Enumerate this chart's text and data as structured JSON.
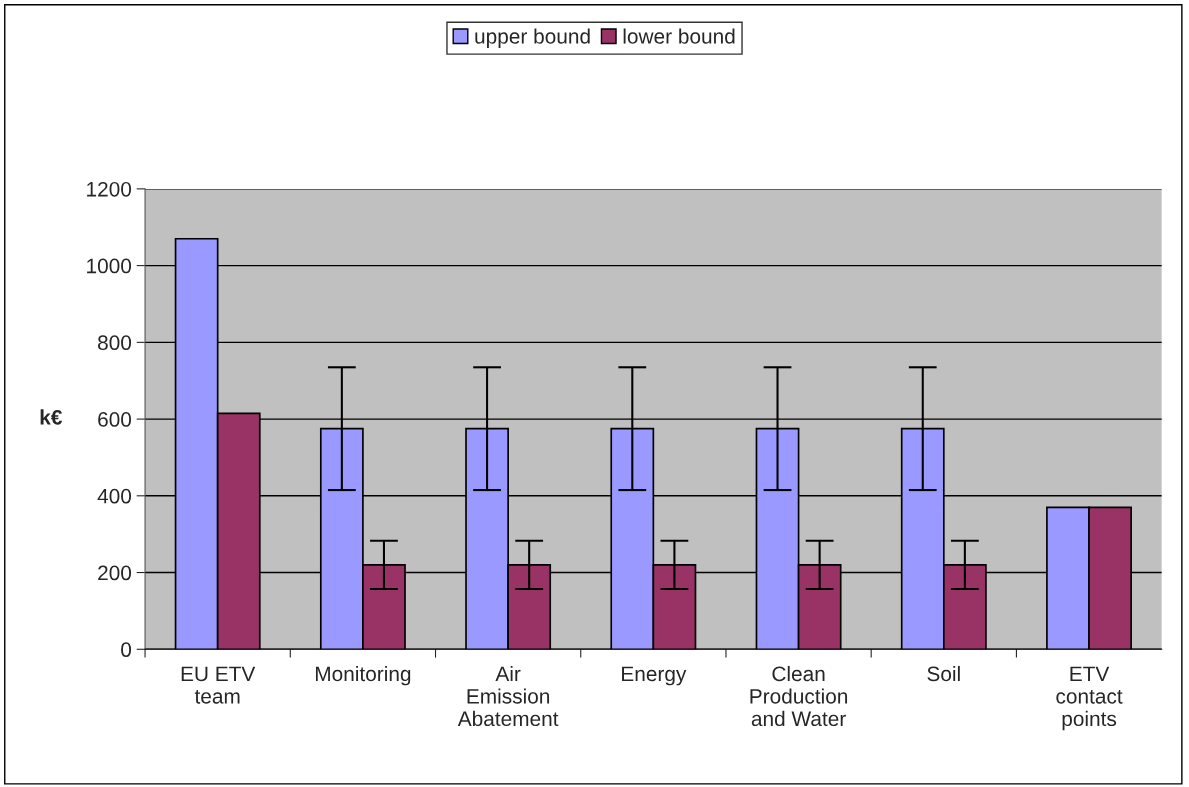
{
  "chart_data": {
    "type": "bar",
    "ylabel": "k€",
    "categories": [
      "EU ETV\nteam",
      "Monitoring",
      "Air\nEmission\nAbatement",
      "Energy",
      "Clean\nProduction\nand Water",
      "Soil",
      "ETV\ncontact\npoints"
    ],
    "series": [
      {
        "name": "upper bound",
        "color": "#9999ff",
        "values": [
          1070,
          575,
          575,
          575,
          575,
          575,
          370
        ],
        "errors": [
          null,
          160,
          160,
          160,
          160,
          160,
          null
        ]
      },
      {
        "name": "lower bound",
        "color": "#993366",
        "values": [
          615,
          220,
          220,
          220,
          220,
          220,
          370
        ],
        "errors": [
          null,
          63,
          63,
          63,
          63,
          63,
          null
        ]
      }
    ],
    "ylim": [
      0,
      1200
    ],
    "yticks": [
      0,
      200,
      400,
      600,
      800,
      1000,
      1200
    ],
    "grid": "y",
    "legend": "top"
  }
}
